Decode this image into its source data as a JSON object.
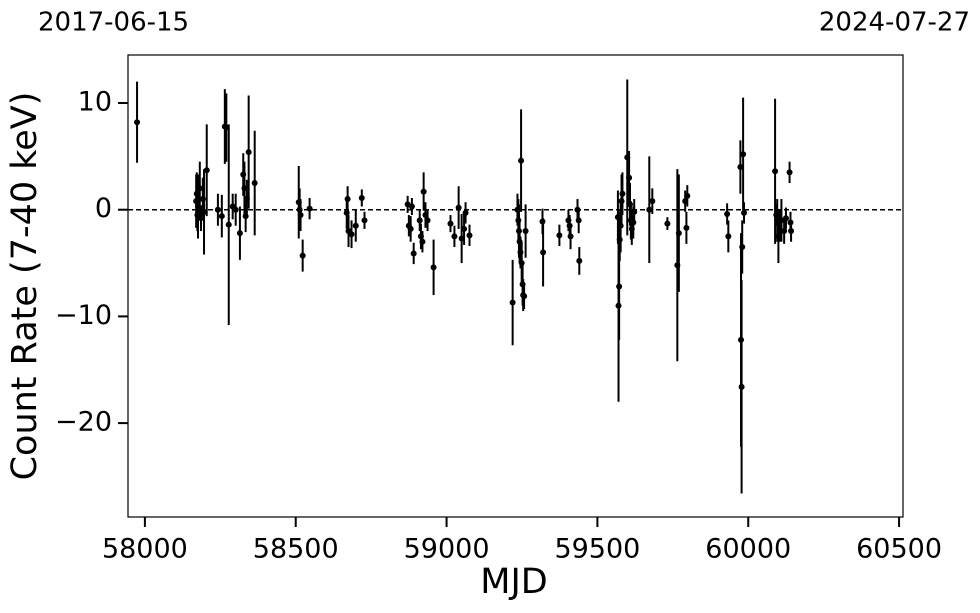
{
  "chart_data": {
    "type": "errorbar",
    "top_labels": [
      "2017-06-15",
      "2024-07-27"
    ],
    "xlabel": "MJD",
    "ylabel": "Count Rate (7-40 keV)",
    "xlim": [
      57944,
      60513
    ],
    "ylim": [
      -28.8,
      14.5
    ],
    "xticks": [
      58000,
      58500,
      59000,
      59500,
      60000,
      60500
    ],
    "yticks": [
      {
        "value": -20,
        "label": "−20"
      },
      {
        "value": -10,
        "label": "−10"
      },
      0,
      10
    ],
    "reference_line": 0,
    "color": "#000000",
    "x": [
      57974,
      58170,
      58172,
      58174,
      58176,
      58182,
      58186,
      58192,
      58196,
      58205,
      58242,
      58255,
      58265,
      58270,
      58278,
      58291,
      58301,
      58315,
      58326,
      58330,
      58334,
      58338,
      58344,
      58364,
      58510,
      58513,
      58516,
      58523,
      58546,
      58669,
      58672,
      58675,
      58685,
      58699,
      58719,
      58728,
      58871,
      58875,
      58881,
      58885,
      58891,
      58911,
      58915,
      58920,
      58924,
      58930,
      58937,
      58957,
      59013,
      59026,
      59040,
      59050,
      59058,
      59063,
      59076,
      59219,
      59235,
      59238,
      59240,
      59242,
      59245,
      59247,
      59249,
      59252,
      59254,
      59257,
      59262,
      59318,
      59320,
      59374,
      59404,
      59408,
      59411,
      59434,
      59438,
      59440,
      59568,
      59570,
      59572,
      59574,
      59577,
      59580,
      59583,
      59599,
      59605,
      59608,
      59611,
      59614,
      59619,
      59622,
      59672,
      59682,
      59732,
      59765,
      59770,
      59791,
      59795,
      59798,
      59930,
      59934,
      59974,
      59976,
      59978,
      59980,
      59983,
      59986,
      60089,
      60093,
      60096,
      60100,
      60104,
      60110,
      60119,
      60125,
      60137,
      60140,
      60142
    ],
    "values": [
      8.2,
      0.8,
      1.5,
      -0.5,
      0.3,
      2.0,
      -0.8,
      1.0,
      -0.2,
      3.7,
      0.0,
      -0.6,
      7.8,
      7.7,
      -1.4,
      0.3,
      0.0,
      -2.2,
      3.3,
      2.0,
      -0.6,
      1.0,
      5.4,
      2.5,
      0.7,
      0.0,
      -0.5,
      -4.3,
      0.1,
      -0.3,
      1.0,
      -2.0,
      -2.3,
      -1.5,
      1.1,
      -1.0,
      0.5,
      -1.5,
      -1.8,
      0.3,
      -4.1,
      -1.0,
      -2.5,
      -3.0,
      1.7,
      -0.5,
      -1.0,
      -5.4,
      -1.3,
      -2.5,
      0.2,
      -2.7,
      -1.8,
      -0.3,
      -2.4,
      -8.7,
      0.0,
      -1.0,
      -2.0,
      -3.0,
      -4.0,
      4.6,
      -5.0,
      -7.0,
      -8.0,
      -8.1,
      -2.0,
      -1.1,
      -4.0,
      -2.4,
      -1.0,
      -1.5,
      -2.5,
      0.0,
      -1.0,
      -4.8,
      -0.7,
      -9.0,
      -7.2,
      -2.8,
      -1.5,
      0.8,
      1.5,
      4.9,
      3.0,
      0.5,
      -1.0,
      -1.8,
      -1.2,
      -0.2,
      0.0,
      0.8,
      -1.3,
      -5.2,
      -2.2,
      0.8,
      -1.7,
      1.3,
      -0.4,
      -2.5,
      4.0,
      -12.2,
      -16.6,
      -3.5,
      5.2,
      -0.3,
      3.6,
      -0.5,
      -1.0,
      -2.5,
      -1.5,
      -1.0,
      -2.0,
      -0.8,
      3.5,
      -1.2,
      -2.0
    ],
    "errors": [
      3.8,
      2.5,
      2.0,
      1.5,
      3.0,
      2.5,
      1.2,
      2.0,
      4.0,
      4.3,
      1.5,
      2.0,
      3.5,
      3.2,
      9.4,
      1.2,
      1.5,
      2.5,
      2.0,
      2.5,
      1.5,
      1.8,
      5.3,
      4.9,
      3.4,
      2.0,
      1.5,
      1.5,
      1.0,
      1.5,
      1.2,
      1.5,
      1.3,
      1.5,
      0.8,
      0.8,
      0.8,
      1.0,
      1.2,
      0.8,
      1.0,
      1.0,
      1.2,
      1.0,
      1.8,
      1.2,
      1.0,
      2.6,
      0.8,
      1.0,
      2.0,
      2.3,
      1.5,
      1.0,
      1.0,
      4.0,
      1.5,
      2.0,
      2.5,
      2.0,
      1.5,
      4.8,
      2.0,
      2.0,
      1.5,
      1.2,
      2.5,
      1.2,
      3.2,
      1.0,
      1.0,
      1.0,
      1.2,
      1.0,
      1.2,
      1.3,
      2.5,
      9.0,
      5.0,
      2.0,
      2.5,
      2.5,
      2.0,
      7.3,
      2.5,
      2.0,
      1.8,
      1.5,
      1.5,
      1.2,
      5.0,
      1.2,
      0.6,
      9.0,
      5.5,
      1.0,
      1.5,
      1.0,
      1.0,
      1.5,
      2.5,
      10.0,
      10.0,
      2.5,
      5.3,
      1.0,
      6.8,
      1.0,
      2.0,
      2.5,
      1.5,
      2.0,
      1.2,
      1.0,
      1.0,
      1.0,
      1.0
    ]
  }
}
